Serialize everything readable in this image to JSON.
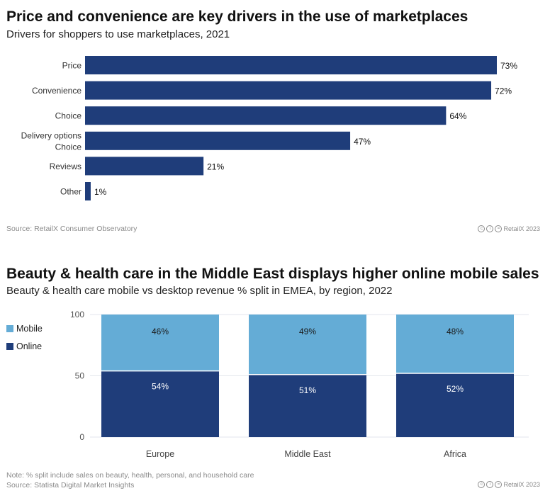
{
  "colors": {
    "primary": "#1f3d7a",
    "secondary": "#64acd6",
    "grid": "#e3e6ec"
  },
  "chart_data": [
    {
      "type": "bar",
      "orientation": "horizontal",
      "title": "Price and convenience are key drivers in the use of marketplaces",
      "subtitle": "Drivers for shoppers to use marketplaces, 2021",
      "categories": [
        "Price",
        "Convenience",
        "Choice",
        "Delivery options Choice",
        "Reviews",
        "Other"
      ],
      "category_lines": [
        [
          "Price"
        ],
        [
          "Convenience"
        ],
        [
          "Choice"
        ],
        [
          "Delivery options",
          "Choice"
        ],
        [
          "Reviews"
        ],
        [
          "Other"
        ]
      ],
      "values": [
        73,
        72,
        64,
        47,
        21,
        1
      ],
      "value_labels": [
        "73%",
        "72%",
        "64%",
        "47%",
        "21%",
        "1%"
      ],
      "unit": "%",
      "xlim": [
        0,
        73
      ],
      "source": "Source: RetailX Consumer Observatory",
      "brand": "RetailX 2023"
    },
    {
      "type": "bar",
      "stacked": true,
      "title": "Beauty & health care in the Middle East displays higher online mobile sales",
      "subtitle": "Beauty & health care mobile vs desktop revenue % split in EMEA, by region, 2022",
      "categories": [
        "Europe",
        "Middle East",
        "Africa"
      ],
      "series": [
        {
          "name": "Online",
          "values": [
            54,
            51,
            52
          ],
          "labels": [
            "54%",
            "51%",
            "52%"
          ]
        },
        {
          "name": "Mobile",
          "values": [
            46,
            49,
            48
          ],
          "labels": [
            "46%",
            "49%",
            "48%"
          ]
        }
      ],
      "legend": [
        "Mobile",
        "Online"
      ],
      "yticks": [
        "100",
        "50",
        "0"
      ],
      "ylim": [
        0,
        100
      ],
      "note": "Note: % split include sales on beauty, health, personal, and household care",
      "source": "Source: Statista Digital Market Insights",
      "brand": "RetailX 2023"
    }
  ]
}
